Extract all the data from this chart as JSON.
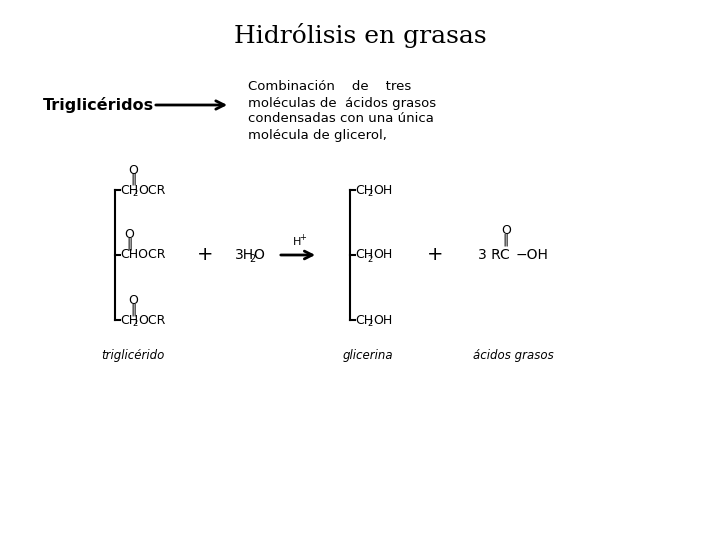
{
  "title": "Hidrólisis en grasas",
  "title_fontsize": 18,
  "bg_color": "#ffffff",
  "label_triglycerides": "Triglicéridos",
  "label_combination_line1": "Combinación    de    tres",
  "label_combination_line2": "moléculas de  ácidos grasos",
  "label_combination_line3": "condensadas con una única",
  "label_combination_line4": "molécula de glicerol,",
  "label_triglicerido": "triglicérido",
  "label_glicerina": "glicerina",
  "label_acidos": "ácidos grasos",
  "text_3H2O": "3H",
  "text_plus": "+",
  "text_H_plus": "H",
  "text_3RC": "3 RC",
  "text_OH": "−OH"
}
